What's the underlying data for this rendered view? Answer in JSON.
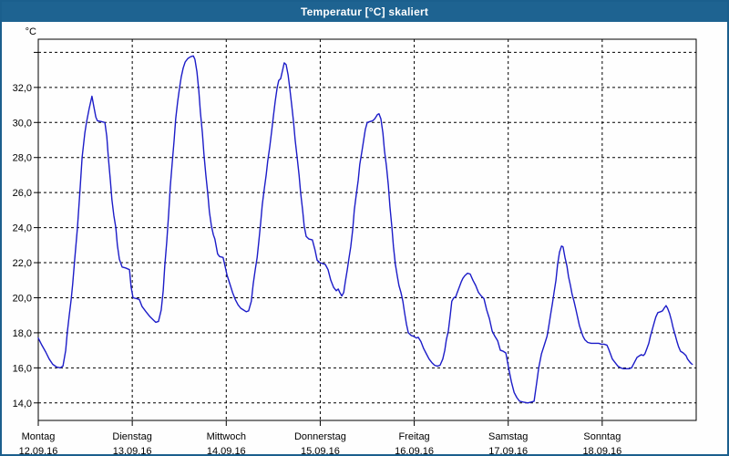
{
  "window": {
    "title": "Temperatur [°C] skaliert",
    "frame_color": "#1b5f8d",
    "titlebar_color": "#1e6391",
    "titlebar_text_color": "#ffffff"
  },
  "chart_data": {
    "type": "line",
    "title": "Temperatur [°C] skaliert",
    "y_unit_label": "°C",
    "xlabel": "",
    "ylabel": "",
    "grid": true,
    "legend_position": "none",
    "xlim_hours": [
      0,
      168
    ],
    "ylim": [
      13.0,
      34.75
    ],
    "y_ticks": [
      {
        "value": 14,
        "label": "14,0"
      },
      {
        "value": 16,
        "label": "16,0"
      },
      {
        "value": 18,
        "label": "18,0"
      },
      {
        "value": 20,
        "label": "20,0"
      },
      {
        "value": 22,
        "label": "22,0"
      },
      {
        "value": 24,
        "label": "24,0"
      },
      {
        "value": 26,
        "label": "26,0"
      },
      {
        "value": 28,
        "label": "28,0"
      },
      {
        "value": 30,
        "label": "30,0"
      },
      {
        "value": 32,
        "label": "32,0"
      },
      {
        "value": 34,
        "label": ""
      }
    ],
    "x_ticks": [
      {
        "hour": 0,
        "day": "Montag",
        "date": "12.09.16"
      },
      {
        "hour": 24,
        "day": "Dienstag",
        "date": "13.09.16"
      },
      {
        "hour": 48,
        "day": "Mittwoch",
        "date": "14.09.16"
      },
      {
        "hour": 72,
        "day": "Donnerstag",
        "date": "15.09.16"
      },
      {
        "hour": 96,
        "day": "Freitag",
        "date": "16.09.16"
      },
      {
        "hour": 120,
        "day": "Samstag",
        "date": "17.09.16"
      },
      {
        "hour": 144,
        "day": "Sonntag",
        "date": "18.09.16"
      }
    ],
    "series": [
      {
        "name": "Temperatur",
        "color": "#1c1cc8",
        "points": [
          [
            0,
            17.7
          ],
          [
            0.9,
            17.3
          ],
          [
            1.9,
            16.9
          ],
          [
            2.8,
            16.5
          ],
          [
            3.7,
            16.2
          ],
          [
            4.7,
            16.05
          ],
          [
            5.6,
            16.0
          ],
          [
            6.3,
            16.1
          ],
          [
            7,
            17
          ],
          [
            7.4,
            18
          ],
          [
            7.9,
            19
          ],
          [
            8.4,
            19.9
          ],
          [
            8.8,
            20.8
          ],
          [
            9.3,
            22.2
          ],
          [
            10,
            24
          ],
          [
            10.7,
            26.3
          ],
          [
            11.2,
            28
          ],
          [
            11.9,
            29.4
          ],
          [
            12.3,
            30
          ],
          [
            13,
            30.8
          ],
          [
            13.7,
            31.5
          ],
          [
            14.2,
            30.9
          ],
          [
            14.7,
            30.3
          ],
          [
            15.1,
            30.1
          ],
          [
            16.1,
            30.05
          ],
          [
            17,
            30
          ],
          [
            17.5,
            29.2
          ],
          [
            17.9,
            28
          ],
          [
            18.4,
            26.7
          ],
          [
            18.8,
            25.6
          ],
          [
            19.3,
            24.7
          ],
          [
            19.8,
            24
          ],
          [
            20.2,
            23
          ],
          [
            20.7,
            22.2
          ],
          [
            21.4,
            21.75
          ],
          [
            22.3,
            21.7
          ],
          [
            23.3,
            21.6
          ],
          [
            23.7,
            20.6
          ],
          [
            24.2,
            20
          ],
          [
            25.1,
            19.95
          ],
          [
            25.8,
            19.9
          ],
          [
            26.5,
            19.5
          ],
          [
            27.5,
            19.2
          ],
          [
            28.4,
            18.95
          ],
          [
            29.3,
            18.75
          ],
          [
            30,
            18.6
          ],
          [
            30.7,
            18.65
          ],
          [
            31.4,
            19.3
          ],
          [
            31.9,
            20.4
          ],
          [
            32.3,
            21.8
          ],
          [
            32.8,
            23.2
          ],
          [
            33.3,
            24.8
          ],
          [
            33.7,
            26.3
          ],
          [
            34.2,
            27.7
          ],
          [
            34.7,
            29
          ],
          [
            35.1,
            30.2
          ],
          [
            35.6,
            31.2
          ],
          [
            36.1,
            32
          ],
          [
            36.5,
            32.6
          ],
          [
            37,
            33.1
          ],
          [
            37.5,
            33.45
          ],
          [
            38.2,
            33.65
          ],
          [
            38.9,
            33.75
          ],
          [
            39.6,
            33.8
          ],
          [
            40,
            33.6
          ],
          [
            40.5,
            32.9
          ],
          [
            41,
            31.8
          ],
          [
            41.4,
            30.6
          ],
          [
            41.9,
            29.4
          ],
          [
            42.3,
            28.2
          ],
          [
            42.8,
            27
          ],
          [
            43.3,
            25.9
          ],
          [
            43.7,
            24.9
          ],
          [
            44.2,
            24.1
          ],
          [
            44.7,
            23.6
          ],
          [
            45.1,
            23.35
          ],
          [
            45.8,
            22.5
          ],
          [
            46.3,
            22.35
          ],
          [
            47.2,
            22.3
          ],
          [
            47.7,
            21.8
          ],
          [
            48.2,
            21.3
          ],
          [
            48.9,
            20.8
          ],
          [
            49.6,
            20.3
          ],
          [
            50.3,
            19.9
          ],
          [
            51,
            19.6
          ],
          [
            51.7,
            19.4
          ],
          [
            52.4,
            19.3
          ],
          [
            53.1,
            19.2
          ],
          [
            53.7,
            19.25
          ],
          [
            54.4,
            19.8
          ],
          [
            54.9,
            20.8
          ],
          [
            55.4,
            21.6
          ],
          [
            55.9,
            22.3
          ],
          [
            56.3,
            23.2
          ],
          [
            56.8,
            24.3
          ],
          [
            57.2,
            25.3
          ],
          [
            57.7,
            26.2
          ],
          [
            58.2,
            27
          ],
          [
            58.6,
            27.8
          ],
          [
            59.1,
            28.6
          ],
          [
            59.6,
            29.5
          ],
          [
            60,
            30.3
          ],
          [
            60.5,
            31.2
          ],
          [
            61,
            32
          ],
          [
            61.4,
            32.4
          ],
          [
            61.9,
            32.5
          ],
          [
            62.4,
            33
          ],
          [
            62.8,
            33.4
          ],
          [
            63.3,
            33.3
          ],
          [
            63.8,
            32.7
          ],
          [
            64.2,
            32
          ],
          [
            64.7,
            31
          ],
          [
            65.2,
            30
          ],
          [
            65.6,
            29
          ],
          [
            66.1,
            28
          ],
          [
            66.6,
            27
          ],
          [
            67,
            26
          ],
          [
            67.5,
            25
          ],
          [
            67.9,
            24.1
          ],
          [
            68.4,
            23.5
          ],
          [
            69.1,
            23.35
          ],
          [
            70,
            23.3
          ],
          [
            70.7,
            22.7
          ],
          [
            71.2,
            22.15
          ],
          [
            71.9,
            22
          ],
          [
            72.6,
            21.95
          ],
          [
            73.3,
            21.9
          ],
          [
            74,
            21.6
          ],
          [
            74.7,
            21
          ],
          [
            75.4,
            20.6
          ],
          [
            76.1,
            20.4
          ],
          [
            76.6,
            20.5
          ],
          [
            77,
            20.3
          ],
          [
            77.5,
            20.1
          ],
          [
            78,
            20.3
          ],
          [
            78.4,
            20.9
          ],
          [
            78.9,
            21.6
          ],
          [
            79.3,
            22.2
          ],
          [
            79.8,
            22.9
          ],
          [
            80.3,
            23.9
          ],
          [
            80.7,
            25
          ],
          [
            81.2,
            25.9
          ],
          [
            81.7,
            26.7
          ],
          [
            82.1,
            27.6
          ],
          [
            82.6,
            28.3
          ],
          [
            83.1,
            29
          ],
          [
            83.5,
            29.6
          ],
          [
            84,
            30
          ],
          [
            84.7,
            30.05
          ],
          [
            85.4,
            30.1
          ],
          [
            85.9,
            30.2
          ],
          [
            86.6,
            30.45
          ],
          [
            87,
            30.5
          ],
          [
            87.5,
            30.2
          ],
          [
            88,
            29.4
          ],
          [
            88.4,
            28.4
          ],
          [
            88.9,
            27.5
          ],
          [
            89.4,
            26.4
          ],
          [
            89.8,
            25.2
          ],
          [
            90.3,
            24
          ],
          [
            90.7,
            22.9
          ],
          [
            91.2,
            21.9
          ],
          [
            91.7,
            21.2
          ],
          [
            92.1,
            20.7
          ],
          [
            92.6,
            20.3
          ],
          [
            93.1,
            19.8
          ],
          [
            93.5,
            19.2
          ],
          [
            94,
            18.5
          ],
          [
            94.5,
            18
          ],
          [
            95.2,
            17.85
          ],
          [
            95.9,
            17.8
          ],
          [
            96.6,
            17.7
          ],
          [
            97,
            17.75
          ],
          [
            97.7,
            17.5
          ],
          [
            98.4,
            17.1
          ],
          [
            99.1,
            16.8
          ],
          [
            99.8,
            16.5
          ],
          [
            100.5,
            16.3
          ],
          [
            101.2,
            16.15
          ],
          [
            101.9,
            16.1
          ],
          [
            102.6,
            16.15
          ],
          [
            103.3,
            16.5
          ],
          [
            103.8,
            17
          ],
          [
            104.2,
            17.6
          ],
          [
            104.7,
            18.1
          ],
          [
            105.2,
            19
          ],
          [
            105.6,
            19.8
          ],
          [
            106.1,
            20
          ],
          [
            106.6,
            20.05
          ],
          [
            107,
            20.3
          ],
          [
            107.5,
            20.6
          ],
          [
            108,
            20.9
          ],
          [
            108.4,
            21.1
          ],
          [
            108.9,
            21.25
          ],
          [
            109.6,
            21.4
          ],
          [
            110.3,
            21.35
          ],
          [
            111,
            21
          ],
          [
            111.7,
            20.7
          ],
          [
            112.4,
            20.3
          ],
          [
            113.1,
            20.1
          ],
          [
            113.8,
            19.95
          ],
          [
            114.5,
            19.3
          ],
          [
            115.2,
            18.8
          ],
          [
            115.9,
            18.1
          ],
          [
            116.6,
            17.8
          ],
          [
            117.3,
            17.55
          ],
          [
            118,
            17
          ],
          [
            118.7,
            16.95
          ],
          [
            119.4,
            16.85
          ],
          [
            120.1,
            16
          ],
          [
            120.8,
            15.2
          ],
          [
            121.5,
            14.6
          ],
          [
            122.2,
            14.3
          ],
          [
            122.9,
            14.1
          ],
          [
            123.8,
            14.05
          ],
          [
            125,
            14
          ],
          [
            125.9,
            14.05
          ],
          [
            126.6,
            14.1
          ],
          [
            127.3,
            15.2
          ],
          [
            127.8,
            16
          ],
          [
            128.5,
            16.8
          ],
          [
            129.2,
            17.3
          ],
          [
            129.9,
            17.8
          ],
          [
            130.3,
            18.3
          ],
          [
            130.8,
            19
          ],
          [
            131.3,
            19.7
          ],
          [
            131.7,
            20.3
          ],
          [
            132.2,
            21
          ],
          [
            132.6,
            21.9
          ],
          [
            133.1,
            22.6
          ],
          [
            133.6,
            22.95
          ],
          [
            134,
            22.9
          ],
          [
            134.5,
            22.3
          ],
          [
            135,
            21.8
          ],
          [
            135.4,
            21.2
          ],
          [
            135.9,
            20.7
          ],
          [
            136.3,
            20.2
          ],
          [
            136.8,
            19.8
          ],
          [
            137.3,
            19.3
          ],
          [
            137.7,
            18.9
          ],
          [
            138.2,
            18.4
          ],
          [
            138.7,
            18.05
          ],
          [
            139.1,
            17.8
          ],
          [
            139.6,
            17.6
          ],
          [
            140.3,
            17.45
          ],
          [
            141.2,
            17.4
          ],
          [
            143.1,
            17.4
          ],
          [
            143.8,
            17.35
          ],
          [
            144.5,
            17.35
          ],
          [
            145.2,
            17.3
          ],
          [
            145.6,
            17.1
          ],
          [
            146.1,
            16.8
          ],
          [
            146.6,
            16.5
          ],
          [
            147.3,
            16.3
          ],
          [
            148,
            16.1
          ],
          [
            148.7,
            16
          ],
          [
            149.4,
            15.95
          ],
          [
            150.8,
            15.95
          ],
          [
            151.5,
            16
          ],
          [
            152.2,
            16.3
          ],
          [
            152.9,
            16.6
          ],
          [
            153.6,
            16.7
          ],
          [
            154,
            16.75
          ],
          [
            154.5,
            16.7
          ],
          [
            154.9,
            16.8
          ],
          [
            155.4,
            17.1
          ],
          [
            155.9,
            17.4
          ],
          [
            156.3,
            17.8
          ],
          [
            156.8,
            18.2
          ],
          [
            157.3,
            18.6
          ],
          [
            157.7,
            18.9
          ],
          [
            158.2,
            19.15
          ],
          [
            158.9,
            19.2
          ],
          [
            159.4,
            19.25
          ],
          [
            159.8,
            19.4
          ],
          [
            160.3,
            19.55
          ],
          [
            160.7,
            19.4
          ],
          [
            161.2,
            19.1
          ],
          [
            161.7,
            18.7
          ],
          [
            162.1,
            18.3
          ],
          [
            162.6,
            17.9
          ],
          [
            163.1,
            17.5
          ],
          [
            163.5,
            17.2
          ],
          [
            164,
            16.95
          ],
          [
            164.7,
            16.85
          ],
          [
            165.4,
            16.7
          ],
          [
            165.8,
            16.5
          ],
          [
            166.3,
            16.35
          ],
          [
            166.7,
            16.25
          ],
          [
            167,
            16.2
          ]
        ]
      }
    ]
  }
}
